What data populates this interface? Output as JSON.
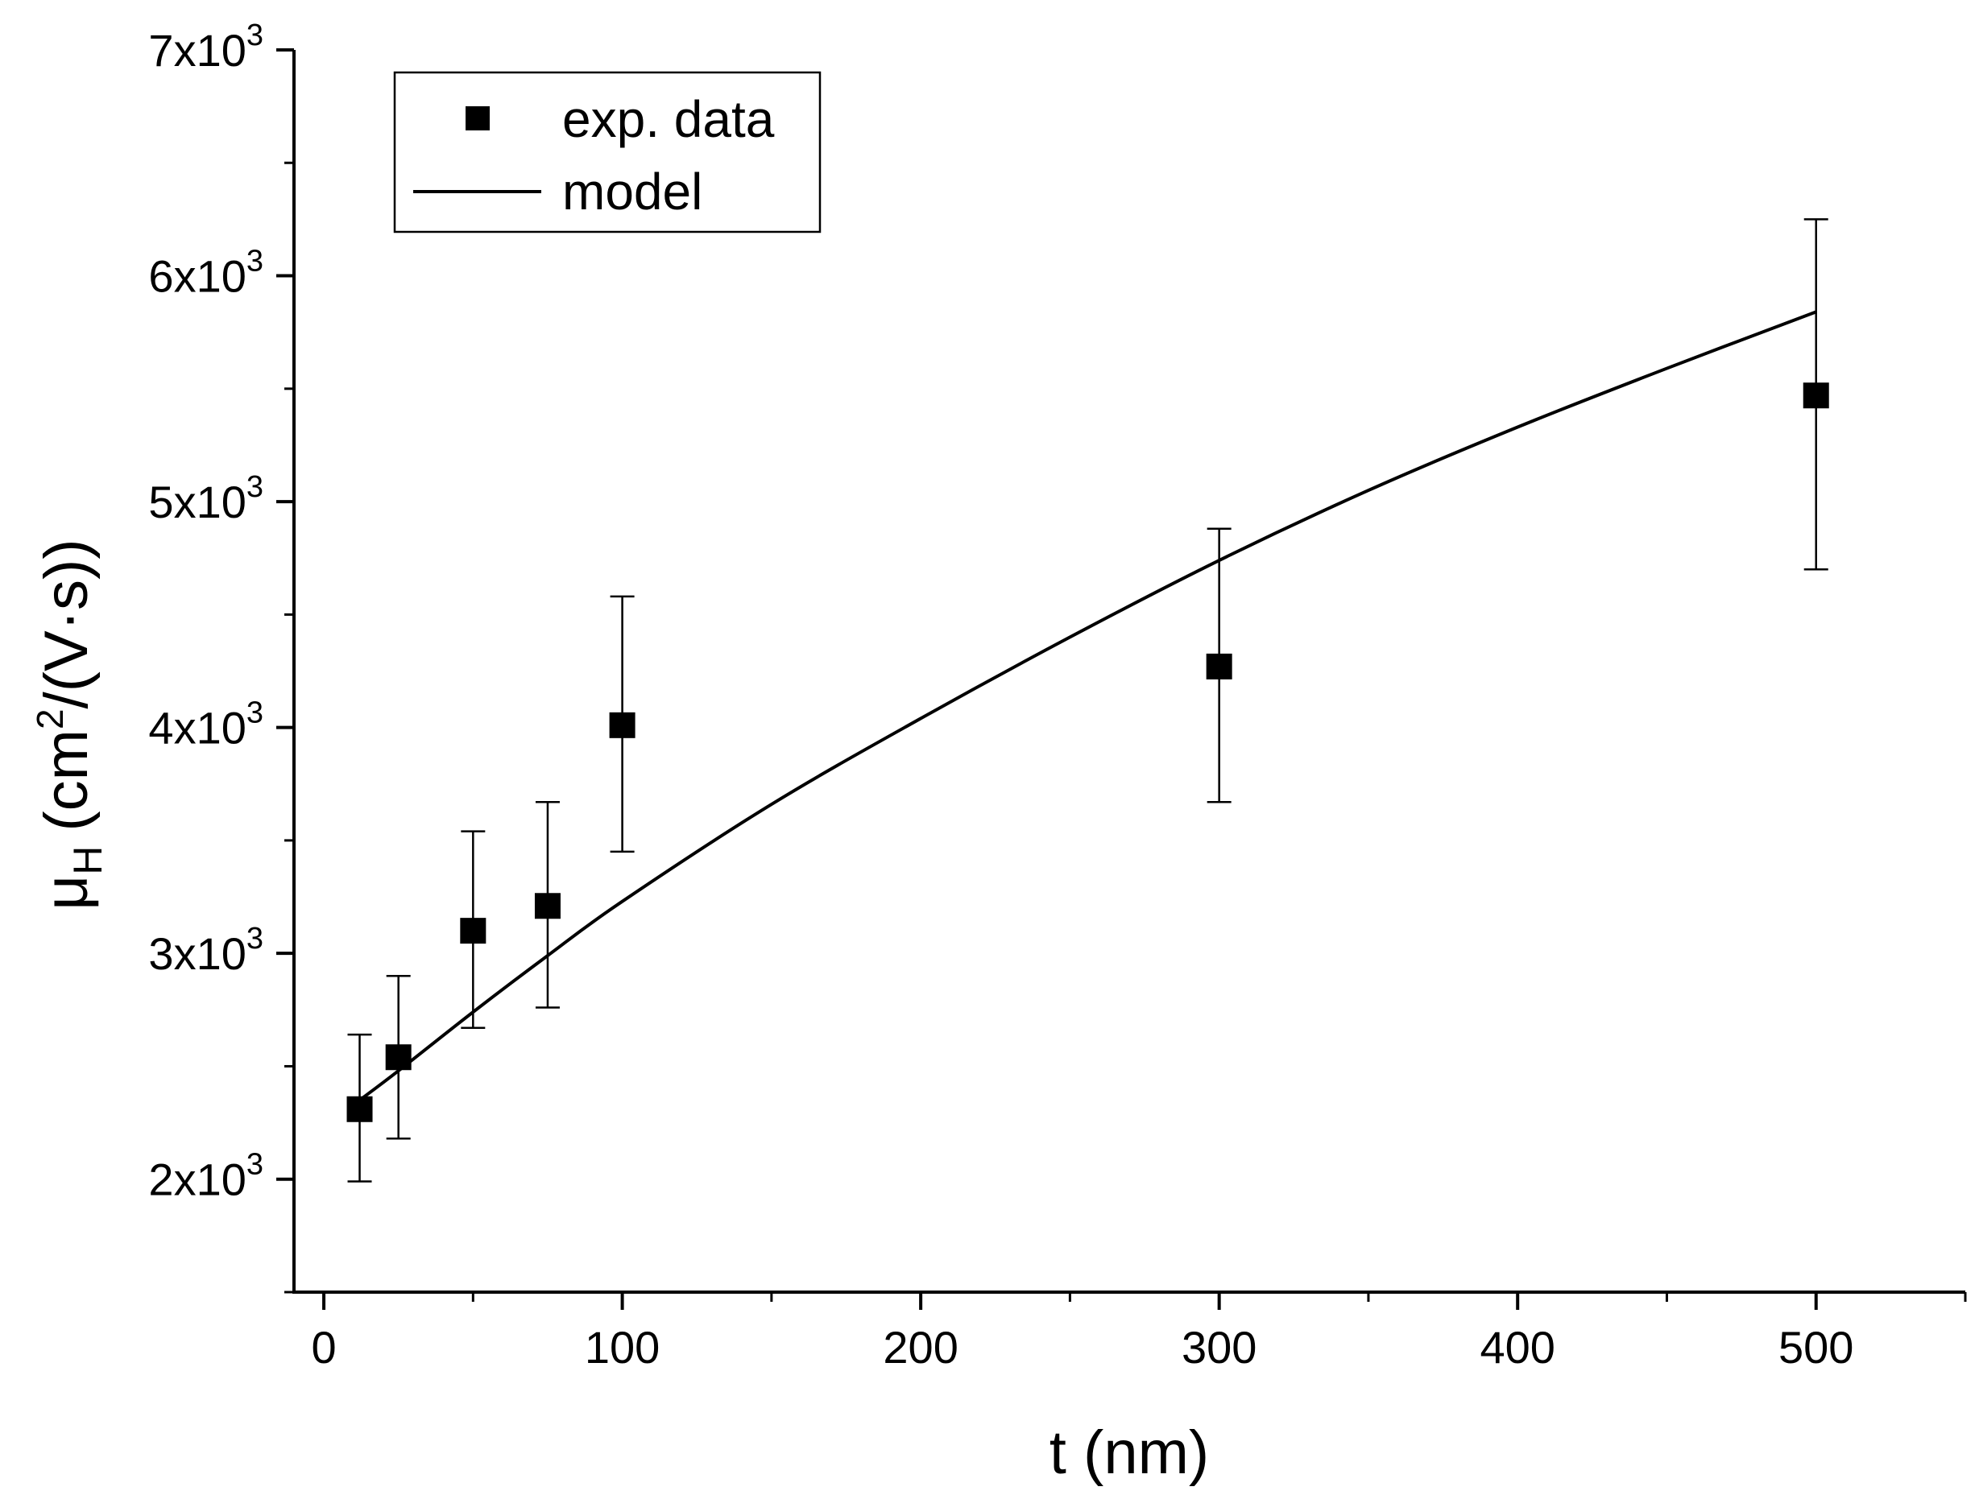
{
  "chart_data": {
    "type": "scatter",
    "title": "",
    "xlabel": "t (nm)",
    "ylabel": {
      "symbol": "μ",
      "subscript": "H",
      "unit_prefix": "(cm",
      "unit_power": "2",
      "unit_suffix": "/(V·s))"
    },
    "xlim": [
      -10,
      550
    ],
    "ylim": [
      1500,
      7000
    ],
    "x_ticks": [
      {
        "value": 0,
        "label": "0"
      },
      {
        "value": 100,
        "label": "100"
      },
      {
        "value": 200,
        "label": "200"
      },
      {
        "value": 300,
        "label": "300"
      },
      {
        "value": 400,
        "label": "400"
      },
      {
        "value": 500,
        "label": "500"
      }
    ],
    "x_minor_ticks": [
      50,
      150,
      250,
      350,
      450,
      550
    ],
    "y_ticks": [
      {
        "value": 2000,
        "mantissa": "2x10",
        "exp": "3"
      },
      {
        "value": 3000,
        "mantissa": "3x10",
        "exp": "3"
      },
      {
        "value": 4000,
        "mantissa": "4x10",
        "exp": "3"
      },
      {
        "value": 5000,
        "mantissa": "5x10",
        "exp": "3"
      },
      {
        "value": 6000,
        "mantissa": "6x10",
        "exp": "3"
      },
      {
        "value": 7000,
        "mantissa": "7x10",
        "exp": "3"
      }
    ],
    "y_minor_ticks": [
      1500,
      2500,
      3500,
      4500,
      5500,
      6500
    ],
    "grid": false,
    "legend_position": "top-left",
    "series": [
      {
        "name": "exp. data",
        "kind": "markers-with-errorbars",
        "marker": "square",
        "points": [
          {
            "x": 12,
            "y": 2310,
            "err_low": 1990,
            "err_high": 2640
          },
          {
            "x": 25,
            "y": 2540,
            "err_low": 2180,
            "err_high": 2900
          },
          {
            "x": 50,
            "y": 3100,
            "err_low": 2670,
            "err_high": 3540
          },
          {
            "x": 75,
            "y": 3210,
            "err_low": 2760,
            "err_high": 3670
          },
          {
            "x": 100,
            "y": 4010,
            "err_low": 3450,
            "err_high": 4580
          },
          {
            "x": 300,
            "y": 4270,
            "err_low": 3670,
            "err_high": 4880
          },
          {
            "x": 500,
            "y": 5470,
            "err_low": 4700,
            "err_high": 6250
          }
        ]
      },
      {
        "name": "model",
        "kind": "line",
        "points": [
          {
            "x": 12,
            "y": 2350
          },
          {
            "x": 25,
            "y": 2480
          },
          {
            "x": 50,
            "y": 2740
          },
          {
            "x": 75,
            "y": 2990
          },
          {
            "x": 100,
            "y": 3230
          },
          {
            "x": 150,
            "y": 3660
          },
          {
            "x": 200,
            "y": 4040
          },
          {
            "x": 250,
            "y": 4400
          },
          {
            "x": 300,
            "y": 4740
          },
          {
            "x": 350,
            "y": 5050
          },
          {
            "x": 400,
            "y": 5330
          },
          {
            "x": 450,
            "y": 5590
          },
          {
            "x": 500,
            "y": 5840
          }
        ]
      }
    ],
    "colors": {
      "ink": "#000000",
      "background": "#ffffff"
    }
  }
}
